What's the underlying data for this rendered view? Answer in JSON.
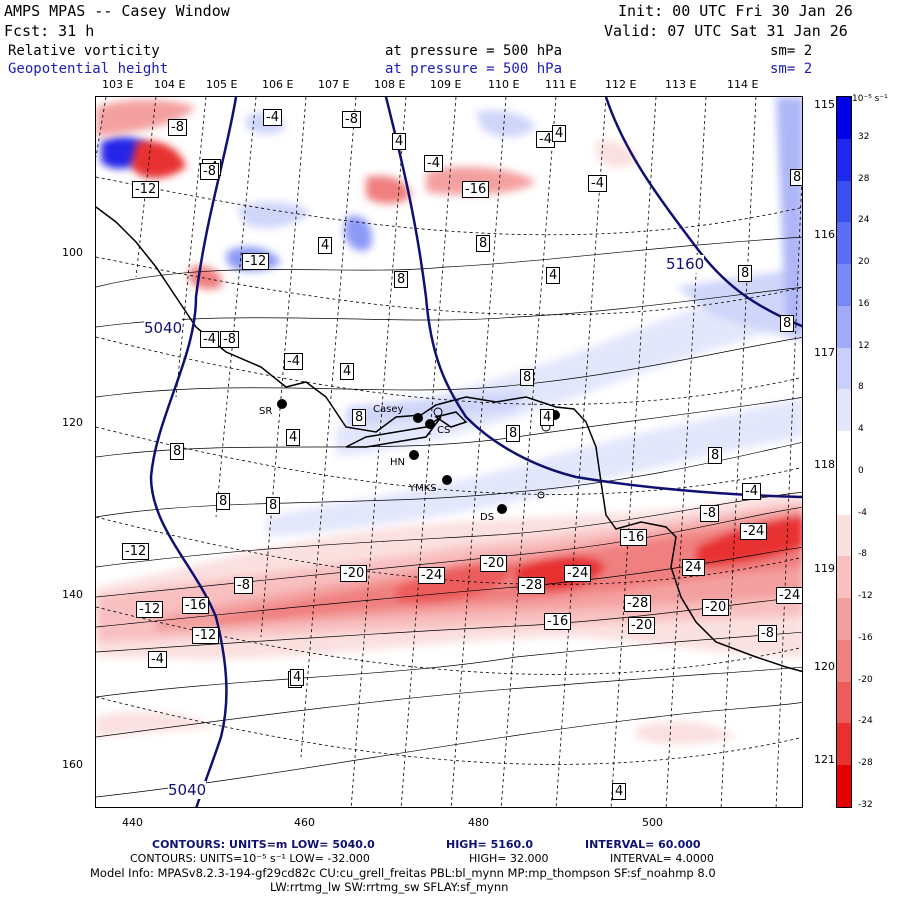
{
  "header": {
    "title": "AMPS MPAS -- Casey Window",
    "init": "Init: 00 UTC Fri 30 Jan 26",
    "fcst": "Fcst:   31 h",
    "valid": "Valid: 07 UTC Sat 31 Jan 26",
    "field1_name": "Relative vorticity",
    "field1_level": "at pressure =  500 hPa",
    "field1_sm": "sm= 2",
    "field2_name": "Geopotential height",
    "field2_level": "at pressure =  500 hPa",
    "field2_sm": "sm= 2"
  },
  "top_lon_labels": [
    "103 E",
    "104 E",
    "105 E",
    "106 E",
    "107 E",
    "108 E",
    "109 E",
    "110 E",
    "111 E",
    "112 E",
    "113 E",
    "114 E"
  ],
  "right_lon_labels": [
    "115 E",
    "116 E",
    "117 E",
    "118 E",
    "119 E",
    "120 E",
    "121 E"
  ],
  "left_axis": [
    "100",
    "120",
    "140",
    "160"
  ],
  "bottom_axis": [
    "440",
    "460",
    "480",
    "500"
  ],
  "legend": {
    "unit": "10⁻⁵ s⁻¹",
    "levels": [
      "32",
      "28",
      "24",
      "20",
      "16",
      "12",
      "8",
      "4",
      "0",
      "-4",
      "-8",
      "-12",
      "-16",
      "-20",
      "-24",
      "-28",
      "-32"
    ],
    "colors": [
      "#0000e6",
      "#1e28ef",
      "#3c50f0",
      "#5a6ef2",
      "#7888f4",
      "#a0aaf6",
      "#c8cff9",
      "#e3e6fb",
      "#ffffff",
      "#ffffff",
      "#fbe0e0",
      "#f8c0c0",
      "#f4a0a0",
      "#f08080",
      "#ec5c5c",
      "#e83030",
      "#e40000"
    ]
  },
  "contour_labels_vort": [
    "-8",
    "-4",
    "-8",
    "-4",
    "4",
    "4",
    "-4",
    "-12",
    "-8",
    "-4",
    "-16",
    "8",
    "-4",
    "8",
    "4",
    "-12",
    "8",
    "4",
    "8",
    "-4",
    "-8",
    "8",
    "4",
    "-4",
    "8",
    "8",
    "4",
    "8",
    "8",
    "4",
    "8",
    "8",
    "8",
    "-4",
    "-8",
    "-20",
    "-24",
    "-20",
    "-28",
    "-24",
    "-16",
    "-28",
    "24",
    "-20",
    "-24",
    "-12",
    "-16",
    "-12",
    "-16",
    "-20",
    "-8",
    "-4",
    "-12",
    "4",
    "-8",
    "-24",
    "4",
    "4"
  ],
  "height_labels": [
    "5040",
    "5160",
    "5040"
  ],
  "stations": [
    "SR",
    "Casey",
    "CS",
    "HN",
    "YMKS",
    "DS"
  ],
  "footer": {
    "line1a": "CONTOURS:  UNITS=m  LOW=  5040.0",
    "line1b": "HIGH=  5160.0",
    "line1c": "INTERVAL=   60.000",
    "line2a": "CONTOURS:  UNITS=10⁻⁵ s⁻¹  LOW= -32.000",
    "line2b": "HIGH=  32.000",
    "line2c": "INTERVAL=  4.0000",
    "line3": "Model Info: MPASv8.2.3-194-gf29cd82c CU:cu_grell_freitas PBL:bl_mynn MP:mp_thompson SF:sf_noahmp 8.0",
    "line4": "LW:rrtmg_lw SW:rrtmg_sw SFLAY:sf_mynn"
  }
}
